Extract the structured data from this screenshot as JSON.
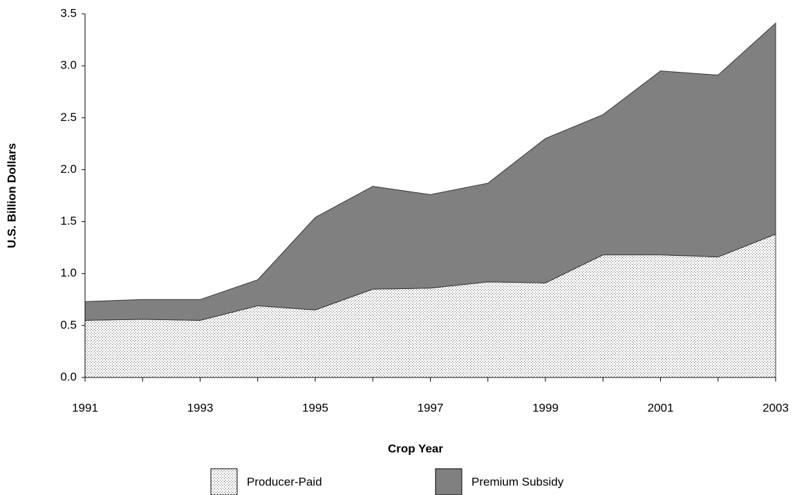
{
  "chart_data": {
    "type": "stacked_area",
    "x": [
      1991,
      1992,
      1993,
      1994,
      1995,
      1996,
      1997,
      1998,
      1999,
      2000,
      2001,
      2002,
      2003
    ],
    "series": [
      {
        "name": "Producer-Paid",
        "color": "#ffffff",
        "pattern": "dots",
        "values": [
          0.55,
          0.56,
          0.55,
          0.69,
          0.65,
          0.85,
          0.86,
          0.92,
          0.91,
          1.18,
          1.18,
          1.16,
          1.38
        ]
      },
      {
        "name": "Premium Subsidy",
        "color": "#808080",
        "values": [
          0.18,
          0.19,
          0.2,
          0.25,
          0.89,
          0.99,
          0.9,
          0.95,
          1.39,
          1.35,
          1.77,
          1.75,
          2.03
        ]
      }
    ],
    "xlabel": "Crop Year",
    "ylabel": "U.S. Billion Dollars",
    "xlim": [
      1991,
      2003
    ],
    "xticks": [
      1991,
      1993,
      1995,
      1997,
      1999,
      2001,
      2003
    ],
    "ylim": [
      0,
      3.5
    ],
    "yticks": [
      {
        "value": 0,
        "label": "0.0"
      },
      0.5,
      {
        "value": 1,
        "label": "1.0"
      },
      1.5,
      {
        "value": 2,
        "label": "2.0"
      },
      2.5,
      {
        "value": 3,
        "label": "3.0"
      },
      3.5
    ],
    "grid": false,
    "legend": "bottom"
  }
}
